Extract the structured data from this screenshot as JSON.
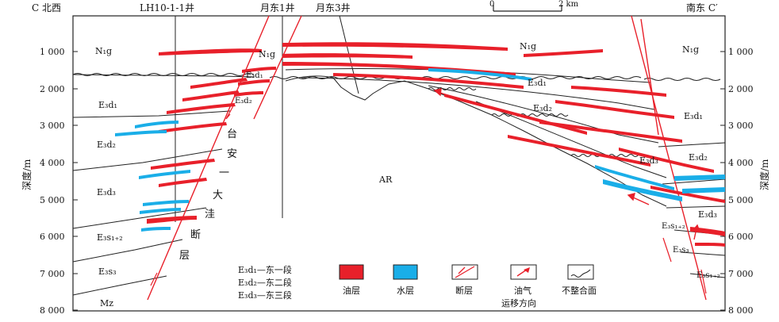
{
  "header": {
    "left_corner": "C 北西",
    "right_corner": "南东 C′",
    "well_a": "LH10-1-1井",
    "well_b": "月东1井",
    "well_c": "月东3井",
    "scale_zero": "0",
    "scale_end": "2 km"
  },
  "axis": {
    "title_left": "深度/m",
    "title_right": "深度/m",
    "ticks": [
      "1 000",
      "2 000",
      "3 000",
      "4 000",
      "5 000",
      "6 000",
      "7 000",
      "8 000"
    ]
  },
  "labels": {
    "n1g_left": "N₁g",
    "n1g_center_left": "N₁g",
    "n1g_center": "N₁g",
    "n1g_right": "N₁g",
    "e3d1_left": "E₃d₁",
    "e3d2_left": "E₃d₂",
    "e3d3_left": "E₃d₃",
    "e3s12_left": "E₃s₁₊₂",
    "e3s3_left": "E₃s₃",
    "mz_left": "Mz",
    "e3d1_upthrown": "E₃d₁",
    "e3d2_upthrown": "E₃d₂",
    "e3d1_center": "E₃d₁",
    "e3d2_center": "E₃d₂",
    "e3d3_center": "E₃d₃",
    "ar": "AR",
    "e3d1_right": "E₃d₁",
    "e3d2_right": "E₃d₂",
    "e3d3_right": "E₃d₃",
    "e3s12_right": "E₃s₁₊₂",
    "e3s3_right": "E₃s₃",
    "e3s12_right2": "E₃s₁₊₂",
    "fault_name": [
      "台",
      "安",
      "一",
      "大",
      "洼",
      "断",
      "层"
    ]
  },
  "legend": {
    "strata_notes": [
      "E₃d₁—东一段",
      "E₃d₂—东二段",
      "E₃d₃—东三段"
    ],
    "oil_layer": "油层",
    "water_layer": "水层",
    "fault": "断层",
    "migration_line1": "油气",
    "migration_line2": "运移方向",
    "unconformity": "不整合面"
  },
  "colors": {
    "oil": "#e8202a",
    "water": "#1aaee8",
    "line": "#222222"
  }
}
